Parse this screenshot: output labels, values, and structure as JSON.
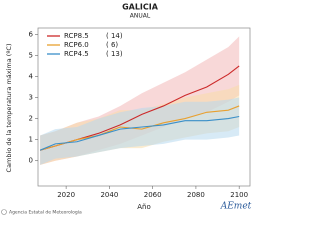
{
  "chart_data": {
    "type": "line",
    "title": "GALICIA",
    "subtitle": "ANUAL",
    "x_label": "Año",
    "y_label": "Cambio de la temperatura máxima (ºC)",
    "x": [
      2008,
      2015,
      2025,
      2035,
      2045,
      2055,
      2065,
      2075,
      2085,
      2095,
      2100
    ],
    "series": [
      {
        "name": "RCP8.5",
        "count_label": "( 14)",
        "color": "#cc2a2a",
        "band_color": "#f2b8b8",
        "values": [
          0.5,
          0.7,
          1.0,
          1.3,
          1.7,
          2.2,
          2.6,
          3.1,
          3.5,
          4.1,
          4.5
        ],
        "lower": [
          -0.2,
          0.0,
          0.2,
          0.5,
          0.8,
          1.2,
          1.6,
          2.0,
          2.3,
          2.8,
          3.1
        ],
        "upper": [
          1.2,
          1.4,
          1.8,
          2.1,
          2.6,
          3.2,
          3.7,
          4.2,
          4.8,
          5.4,
          5.9
        ]
      },
      {
        "name": "RCP6.0",
        "count_label": "(  6)",
        "color": "#e8a030",
        "band_color": "#f8dcaa",
        "values": [
          0.5,
          0.7,
          1.0,
          1.2,
          1.6,
          1.5,
          1.8,
          2.0,
          2.3,
          2.4,
          2.6
        ],
        "lower": [
          -0.2,
          0.0,
          0.2,
          0.4,
          0.6,
          0.6,
          0.9,
          1.1,
          1.3,
          1.4,
          1.6
        ],
        "upper": [
          1.2,
          1.4,
          1.8,
          2.0,
          2.4,
          2.4,
          2.7,
          3.0,
          3.2,
          3.4,
          3.6
        ]
      },
      {
        "name": "RCP4.5",
        "count_label": "( 13)",
        "color": "#3a8fc8",
        "band_color": "#b6d8ee",
        "values": [
          0.5,
          0.8,
          0.9,
          1.2,
          1.5,
          1.6,
          1.7,
          1.9,
          1.9,
          2.0,
          2.1
        ],
        "lower": [
          -0.2,
          0.1,
          0.2,
          0.4,
          0.6,
          0.7,
          0.8,
          1.0,
          1.0,
          1.1,
          1.2
        ],
        "upper": [
          1.2,
          1.5,
          1.6,
          2.0,
          2.3,
          2.5,
          2.6,
          2.8,
          2.8,
          2.9,
          3.0
        ]
      }
    ],
    "xlim": [
      2007,
      2105
    ],
    "ylim": [
      -1.2,
      6.3
    ],
    "xticks": [
      2020,
      2040,
      2060,
      2080,
      2100
    ],
    "yticks": [
      0,
      1,
      2,
      3,
      4,
      5,
      6
    ]
  },
  "footer": {
    "agency": "Agencia Estatal de Meteorología",
    "logo": "AEmet"
  }
}
